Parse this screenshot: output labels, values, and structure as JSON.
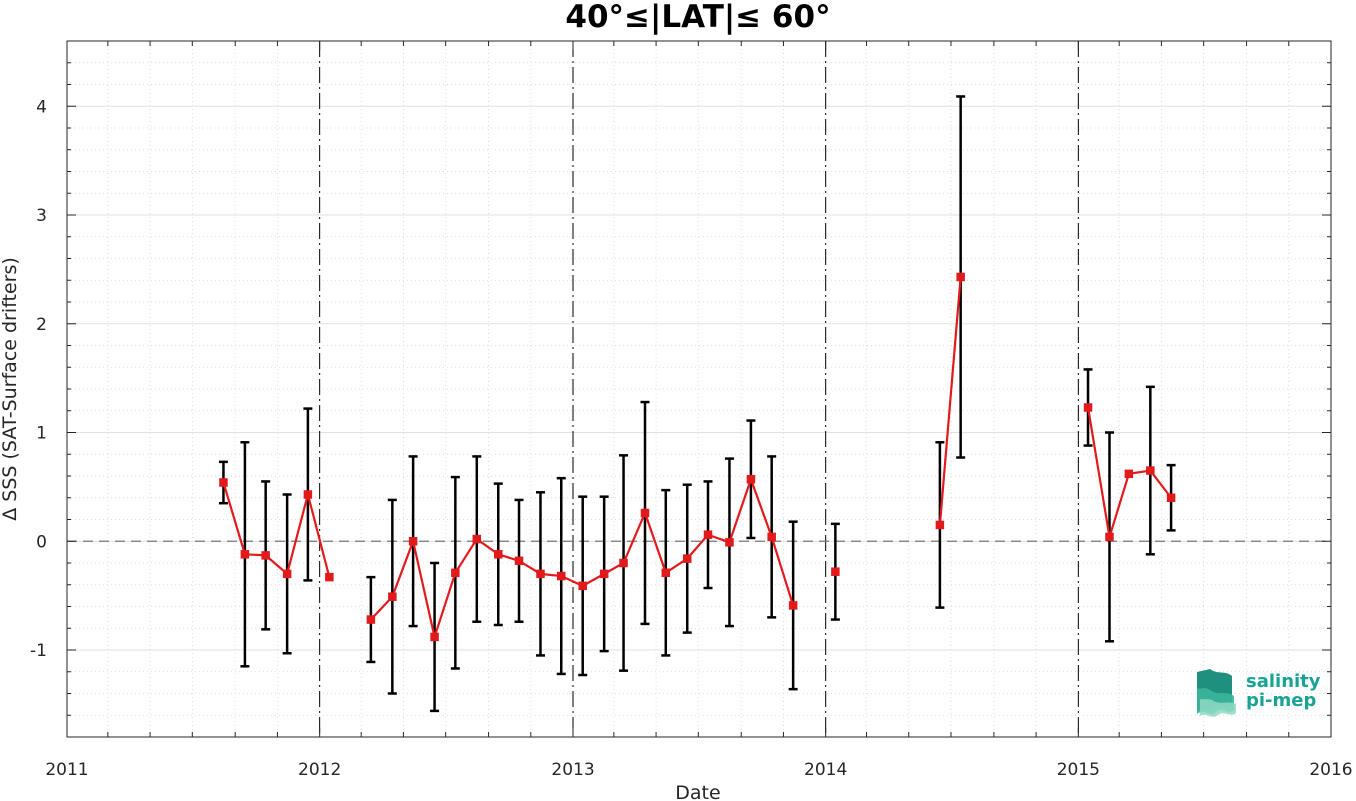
{
  "chart_data": {
    "type": "line",
    "title": "40°≤|LAT|≤ 60°",
    "xlabel": "Date",
    "ylabel": "Δ SSS (SAT-Surface drifters)",
    "xlim": [
      "2011-01-01",
      "2016-01-01"
    ],
    "ylim": [
      -1.8,
      4.6
    ],
    "x_tick_labels": [
      "2011",
      "2012",
      "2013",
      "2014",
      "2015",
      "2016"
    ],
    "y_tick_labels": [
      "-1",
      "0",
      "1",
      "2",
      "3",
      "4"
    ],
    "y_ticks": [
      -1,
      0,
      1,
      2,
      3,
      4
    ],
    "grid": true,
    "minor_grid": true,
    "reference_line": 0,
    "year_markers": [
      "2012-01-01",
      "2013-01-01",
      "2014-01-01",
      "2015-01-01"
    ],
    "series": [
      {
        "color": "#e31a1c",
        "error_bar_color": "#000000",
        "segments": [
          [
            {
              "x": "2011-08-15",
              "y": 0.54,
              "err": 0.19
            },
            {
              "x": "2011-09-15",
              "y": -0.12,
              "err": 1.03
            },
            {
              "x": "2011-10-15",
              "y": -0.13,
              "err": 0.68
            },
            {
              "x": "2011-11-15",
              "y": -0.3,
              "err": 0.73
            },
            {
              "x": "2011-12-15",
              "y": 0.43,
              "err": 0.79
            },
            {
              "x": "2012-01-15",
              "y": -0.33,
              "err": 0.0
            }
          ],
          [
            {
              "x": "2012-03-15",
              "y": -0.72,
              "err": 0.39
            },
            {
              "x": "2012-04-15",
              "y": -0.51,
              "err": 0.89
            },
            {
              "x": "2012-05-15",
              "y": 0.0,
              "err": 0.78
            },
            {
              "x": "2012-06-15",
              "y": -0.88,
              "err": 0.68
            },
            {
              "x": "2012-07-15",
              "y": -0.29,
              "err": 0.88
            },
            {
              "x": "2012-08-15",
              "y": 0.02,
              "err": 0.76
            },
            {
              "x": "2012-09-15",
              "y": -0.12,
              "err": 0.65
            },
            {
              "x": "2012-10-15",
              "y": -0.18,
              "err": 0.56
            },
            {
              "x": "2012-11-15",
              "y": -0.3,
              "err": 0.75
            },
            {
              "x": "2012-12-15",
              "y": -0.32,
              "err": 0.9
            },
            {
              "x": "2013-01-15",
              "y": -0.41,
              "err": 0.82
            },
            {
              "x": "2013-02-15",
              "y": -0.3,
              "err": 0.71
            },
            {
              "x": "2013-03-15",
              "y": -0.2,
              "err": 0.99
            },
            {
              "x": "2013-04-15",
              "y": 0.26,
              "err": 1.02
            },
            {
              "x": "2013-05-15",
              "y": -0.29,
              "err": 0.76
            },
            {
              "x": "2013-06-15",
              "y": -0.16,
              "err": 0.68
            },
            {
              "x": "2013-07-15",
              "y": 0.06,
              "err": 0.49
            },
            {
              "x": "2013-08-15",
              "y": -0.01,
              "err": 0.77
            },
            {
              "x": "2013-09-15",
              "y": 0.57,
              "err": 0.54
            },
            {
              "x": "2013-10-15",
              "y": 0.04,
              "err": 0.74
            },
            {
              "x": "2013-11-15",
              "y": -0.59,
              "err": 0.77
            }
          ],
          [
            {
              "x": "2014-01-15",
              "y": -0.28,
              "err": 0.44
            }
          ],
          [
            {
              "x": "2014-06-15",
              "y": 0.15,
              "err": 0.76
            },
            {
              "x": "2014-07-15",
              "y": 2.43,
              "err": 1.66
            }
          ],
          [
            {
              "x": "2015-01-15",
              "y": 1.23,
              "err": 0.35
            },
            {
              "x": "2015-02-15",
              "y": 0.04,
              "err": 0.96
            },
            {
              "x": "2015-03-15",
              "y": 0.62,
              "err": 0.0
            },
            {
              "x": "2015-04-15",
              "y": 0.65,
              "err": 0.77
            },
            {
              "x": "2015-05-15",
              "y": 0.4,
              "err": 0.3
            }
          ]
        ]
      }
    ]
  },
  "logo": {
    "line1": "salinity",
    "line2": "pi-mep",
    "color": "#19a394"
  }
}
